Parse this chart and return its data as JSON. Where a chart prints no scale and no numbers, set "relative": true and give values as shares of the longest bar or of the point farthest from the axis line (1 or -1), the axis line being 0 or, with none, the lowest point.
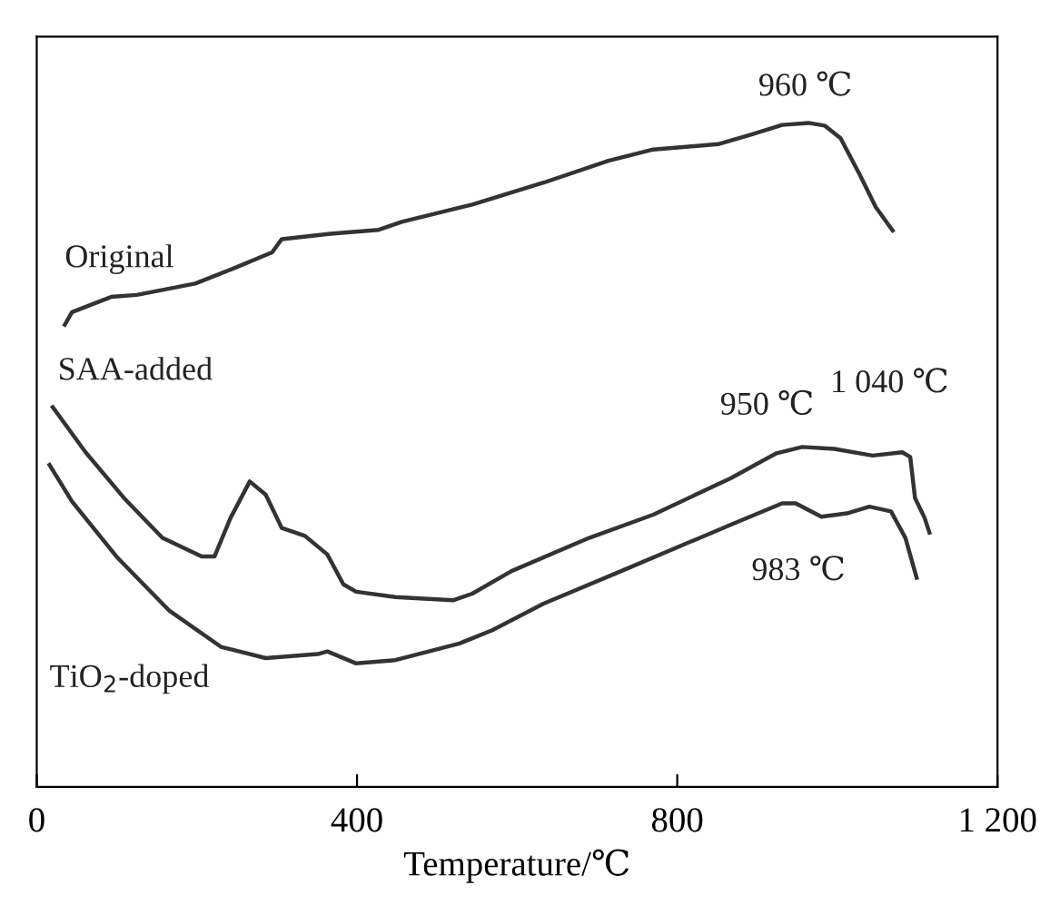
{
  "chart_data": {
    "type": "line",
    "relative": true,
    "xlabel": "Temperature/℃",
    "xlim": [
      0,
      1200
    ],
    "xticks": [
      0,
      400,
      800,
      {
        "value": 1200,
        "label": "1 200"
      }
    ],
    "tick_labels": "x",
    "grid": false,
    "legend": false,
    "marker": "none",
    "line_style": "solid",
    "series": [
      {
        "name": "Original",
        "color": "#333333",
        "x": [
          35,
          44,
          93,
          125,
          198,
          246,
          294,
          306,
          367,
          427,
          456,
          544,
          633,
          714,
          770,
          851,
          891,
          931,
          964,
          984,
          1004,
          1028,
          1048,
          1069
        ],
        "values": [
          0.696,
          0.715,
          0.738,
          0.741,
          0.758,
          0.781,
          0.805,
          0.825,
          0.833,
          0.839,
          0.851,
          0.877,
          0.91,
          0.943,
          0.96,
          0.968,
          0.982,
          0.997,
          1.0,
          0.996,
          0.977,
          0.922,
          0.873,
          0.838
        ]
      },
      {
        "name": "SAA-added",
        "color": "#333333",
        "x": [
          20,
          61,
          109,
          157,
          206,
          222,
          242,
          266,
          286,
          306,
          335,
          363,
          383,
          399,
          448,
          520,
          544,
          593,
          690,
          770,
          867,
          923,
          956,
          996,
          1044,
          1081,
          1091,
          1097,
          1109,
          1115
        ],
        "values": [
          0.572,
          0.504,
          0.435,
          0.375,
          0.347,
          0.347,
          0.405,
          0.46,
          0.44,
          0.39,
          0.378,
          0.35,
          0.305,
          0.294,
          0.286,
          0.281,
          0.291,
          0.325,
          0.375,
          0.41,
          0.465,
          0.502,
          0.512,
          0.509,
          0.499,
          0.504,
          0.497,
          0.435,
          0.405,
          0.383
        ]
      },
      {
        "name": "TiO$_{2}$-doped",
        "color": "#333333",
        "x": [
          16,
          44,
          101,
          165,
          230,
          286,
          351,
          363,
          399,
          448,
          528,
          569,
          633,
          730,
          867,
          931,
          948,
          980,
          1012,
          1040,
          1067,
          1085,
          1099
        ],
        "values": [
          0.485,
          0.43,
          0.345,
          0.266,
          0.211,
          0.194,
          0.2,
          0.204,
          0.186,
          0.191,
          0.216,
          0.236,
          0.276,
          0.325,
          0.395,
          0.427,
          0.427,
          0.407,
          0.412,
          0.422,
          0.415,
          0.375,
          0.315
        ]
      }
    ],
    "annotations": [
      {
        "text": "960 ℃",
        "x": 960,
        "y": 1.0
      },
      {
        "text": "950 ℃",
        "x": 950,
        "y": 0.512
      },
      {
        "text": "1 040 ℃",
        "x": 1040,
        "y": 0.5
      },
      {
        "text": "983 ℃",
        "x": 983,
        "y": 0.407
      }
    ]
  }
}
